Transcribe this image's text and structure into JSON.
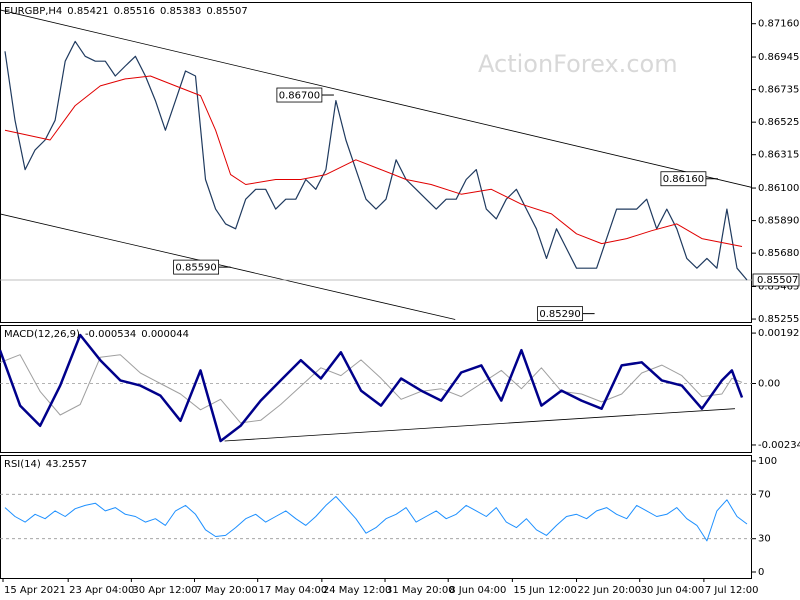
{
  "chart_data": [
    {
      "type": "line",
      "title": "EURGBP,H4",
      "header_values": [
        "0.85421",
        "0.85516",
        "0.85383",
        "0.85507"
      ],
      "watermark": "ActionForex.com",
      "xlim": [
        0,
        75
      ],
      "ylim": [
        0.85236,
        0.873
      ],
      "yticks": [
        {
          "value": 0.8716,
          "label": "0.87160"
        },
        {
          "value": 0.86945,
          "label": "0.86945"
        },
        {
          "value": 0.86735,
          "label": "0.86735"
        },
        {
          "value": 0.86525,
          "label": "0.86525"
        },
        {
          "value": 0.86315,
          "label": "0.86315"
        },
        {
          "value": 0.861,
          "label": "0.86100"
        },
        {
          "value": 0.8589,
          "label": "0.85890"
        },
        {
          "value": 0.8568,
          "label": "0.85680"
        },
        {
          "value": 0.85465,
          "label": "0.85465"
        },
        {
          "value": 0.85255,
          "label": "0.85255"
        }
      ],
      "x": [
        0.5,
        1.5,
        2.5,
        3.5,
        4.5,
        5.5,
        6.5,
        7.5,
        8.5,
        9.5,
        10.5,
        11.5,
        12.5,
        13.5,
        14.5,
        15.5,
        16.5,
        17.5,
        18.5,
        19.5,
        20.5,
        21.5,
        22.5,
        23.5,
        24.5,
        25.5,
        26.5,
        27.5,
        28.5,
        29.5,
        30.5,
        31.5,
        32.5,
        33.5,
        34.5,
        35.5,
        36.5,
        37.5,
        38.5,
        39.5,
        40.5,
        41.5,
        42.5,
        43.5,
        44.5,
        45.5,
        46.5,
        47.5,
        48.5,
        49.5,
        50.5,
        51.5,
        52.5,
        53.5,
        54.5,
        55.5,
        56.5,
        57.5,
        58.5,
        59.5,
        60.5,
        61.5,
        62.5,
        63.5,
        64.5,
        65.5,
        66.5,
        67.5,
        68.5,
        69.5,
        70.5,
        71.5,
        72.5,
        73.5,
        74.5
      ],
      "series": [
        {
          "color": "#1f3a5f",
          "width": 1.2,
          "values": [
            0.86982,
            0.86537,
            0.86219,
            0.86346,
            0.8641,
            0.86537,
            0.86918,
            0.87046,
            0.8695,
            0.86918,
            0.86918,
            0.86823,
            0.86887,
            0.8695,
            0.86823,
            0.86664,
            0.86473,
            0.86664,
            0.86855,
            0.86823,
            0.86155,
            0.85964,
            0.85869,
            0.85837,
            0.86028,
            0.86092,
            0.86092,
            0.85964,
            0.86028,
            0.86028,
            0.86155,
            0.86092,
            0.86219,
            0.86664,
            0.8641,
            0.86219,
            0.86028,
            0.85964,
            0.86028,
            0.86282,
            0.86155,
            0.86092,
            0.86028,
            0.85964,
            0.86028,
            0.86028,
            0.86155,
            0.86219,
            0.85964,
            0.85901,
            0.86028,
            0.86092,
            0.85964,
            0.85837,
            0.85646,
            0.85837,
            0.8571,
            0.85583,
            0.85583,
            0.85583,
            0.85774,
            0.85964,
            0.85964,
            0.85964,
            0.86028,
            0.85837,
            0.85964,
            0.85837,
            0.85646,
            0.85583,
            0.85646,
            0.85583,
            0.85964,
            0.85583,
            0.85507
          ]
        },
        {
          "color": "#e00000",
          "width": 1,
          "x": [
            0.5,
            5,
            7.5,
            10,
            12.5,
            15,
            17.5,
            20,
            21.5,
            23,
            24.5,
            27.5,
            30,
            32.5,
            35.5,
            38,
            40.5,
            43,
            46,
            49,
            52,
            55,
            57.5,
            60,
            62.5,
            65,
            67.5,
            70,
            74
          ],
          "values": [
            0.86473,
            0.8641,
            0.86632,
            0.86759,
            0.86804,
            0.86823,
            0.86759,
            0.86696,
            0.86473,
            0.86187,
            0.86123,
            0.86155,
            0.86155,
            0.86187,
            0.86282,
            0.86219,
            0.86155,
            0.86123,
            0.8606,
            0.86092,
            0.85996,
            0.85933,
            0.85805,
            0.85742,
            0.85774,
            0.85825,
            0.85869,
            0.85774,
            0.85723
          ]
        }
      ],
      "trendlines": [
        {
          "x": [
            0,
            75
          ],
          "values": [
            0.87249,
            0.86104
          ]
        },
        {
          "x": [
            0,
            45.4
          ],
          "values": [
            0.85933,
            0.85252
          ]
        }
      ],
      "annotations": [
        {
          "label": "0.86700",
          "value": 0.867,
          "x": 33.3
        },
        {
          "label": "0.85590",
          "value": 0.8559,
          "x": 23
        },
        {
          "label": "0.85290",
          "value": 0.8529,
          "x": 59.3
        },
        {
          "label": "0.86160",
          "value": 0.8616,
          "x": 71.6
        }
      ],
      "last_price": {
        "value": 0.85507,
        "label": "0.85507"
      }
    },
    {
      "type": "line",
      "title": "MACD(12,26,9)",
      "header_values": [
        "-0.000534",
        "0.000044"
      ],
      "xlim": [
        0,
        75
      ],
      "ylim": [
        -0.00261,
        0.00223
      ],
      "yticks": [
        0.001922,
        {
          "value": 0,
          "label": "0.00"
        },
        -0.002342
      ],
      "levels": [
        0
      ],
      "x": [
        0,
        2,
        4,
        6,
        8,
        10,
        12,
        14,
        16,
        18,
        20,
        22,
        24,
        26,
        28,
        30,
        32,
        34,
        36,
        38,
        40,
        42,
        44,
        46,
        48,
        50,
        52,
        54,
        56,
        58,
        60,
        62,
        64,
        66,
        68,
        70,
        72,
        73,
        74
      ],
      "series": [
        {
          "color": "#a0a0a0",
          "width": 1,
          "values": [
            0.0008,
            0.0011,
            -0.0003,
            -0.0012,
            -0.0008,
            0.001,
            0.0011,
            0.0004,
            0,
            -0.0004,
            -0.001,
            -0.0006,
            -0.0015,
            -0.0014,
            -0.0008,
            -0.0001,
            0.0006,
            0.0003,
            0.0009,
            0.0002,
            -0.0006,
            -0.0003,
            -0.0002,
            -0.0005,
            0,
            0.0005,
            -0.0002,
            0.0006,
            -0.0003,
            -0.0004,
            -0.0007,
            -0.0004,
            0.0004,
            0.0007,
            0.0003,
            -0.0005,
            -0.0004,
            0.0002,
            4.4e-05
          ]
        },
        {
          "color": "#00008b",
          "width": 2.5,
          "values": [
            0.00127,
            -0.00084,
            -0.00161,
            -8e-05,
            0.00185,
            0.00089,
            0.00012,
            -8e-05,
            -0.00046,
            -0.00142,
            0.0005,
            -0.00219,
            -0.00161,
            -0.00065,
            0.00012,
            0.00089,
            0.00019,
            0.00119,
            -0.00027,
            -0.00084,
            0.00019,
            -0.00027,
            -0.00065,
            0.00042,
            0.00069,
            -0.00065,
            0.00127,
            -0.00084,
            -0.00027,
            -0.00065,
            -0.00096,
            0.00069,
            0.00081,
            0.00012,
            -8e-05,
            -0.00096,
            0.00012,
            0.0005,
            -0.000534
          ]
        }
      ],
      "trendlines": [
        {
          "x": [
            22.4,
            73.3
          ],
          "values": [
            -0.00219,
            -0.00096
          ]
        }
      ]
    },
    {
      "type": "line",
      "title": "RSI(14)",
      "header_values": [
        "43.2557"
      ],
      "xlim": [
        0,
        75
      ],
      "ylim": [
        -5.4,
        105.4
      ],
      "yticks": [
        0,
        30,
        70,
        100
      ],
      "levels": [
        30,
        70
      ],
      "x": [
        0.5,
        1.5,
        2.5,
        3.5,
        4.5,
        5.5,
        6.5,
        7.5,
        8.5,
        9.5,
        10.5,
        11.5,
        12.5,
        13.5,
        14.5,
        15.5,
        16.5,
        17.5,
        18.5,
        19.5,
        20.5,
        21.5,
        22.5,
        23.5,
        24.5,
        25.5,
        26.5,
        27.5,
        28.5,
        29.5,
        30.5,
        31.5,
        32.5,
        33.5,
        34.5,
        35.5,
        36.5,
        37.5,
        38.5,
        39.5,
        40.5,
        41.5,
        42.5,
        43.5,
        44.5,
        45.5,
        46.5,
        47.5,
        48.5,
        49.5,
        50.5,
        51.5,
        52.5,
        53.5,
        54.5,
        55.5,
        56.5,
        57.5,
        58.5,
        59.5,
        60.5,
        61.5,
        62.5,
        63.5,
        64.5,
        65.5,
        66.5,
        67.5,
        68.5,
        69.5,
        70.5,
        71.5,
        72.5,
        73.5,
        74.5
      ],
      "series": [
        {
          "color": "#1e90ff",
          "width": 1,
          "values": [
            58,
            50,
            45,
            52,
            48,
            55,
            50,
            57,
            60,
            62,
            55,
            58,
            52,
            50,
            45,
            48,
            42,
            55,
            60,
            52,
            38,
            32,
            33,
            40,
            48,
            52,
            45,
            50,
            55,
            48,
            42,
            50,
            60,
            68,
            58,
            48,
            35,
            40,
            48,
            52,
            58,
            45,
            50,
            55,
            48,
            52,
            60,
            55,
            50,
            58,
            45,
            40,
            48,
            38,
            33,
            42,
            50,
            52,
            48,
            55,
            58,
            52,
            48,
            60,
            55,
            50,
            52,
            58,
            48,
            42,
            28,
            55,
            65,
            50,
            43.2557
          ]
        }
      ],
      "xticks": [
        {
          "value": 0.3,
          "label": "15 Apr 2021"
        },
        {
          "value": 6.8,
          "label": "23 Apr 04:00"
        },
        {
          "value": 13.1,
          "label": "30 Apr 12:00"
        },
        {
          "value": 19.4,
          "label": "7 May 20:00"
        },
        {
          "value": 25.7,
          "label": "17 May 04:00"
        },
        {
          "value": 32.1,
          "label": "24 May 12:00"
        },
        {
          "value": 38.4,
          "label": "31 May 20:00"
        },
        {
          "value": 44.7,
          "label": "8 Jun 04:00"
        },
        {
          "value": 51.1,
          "label": "15 Jun 12:00"
        },
        {
          "value": 57.5,
          "label": "22 Jun 20:00"
        },
        {
          "value": 63.8,
          "label": "30 Jun 04:00"
        },
        {
          "value": 70.2,
          "label": "7 Jul 12:00"
        }
      ]
    }
  ]
}
